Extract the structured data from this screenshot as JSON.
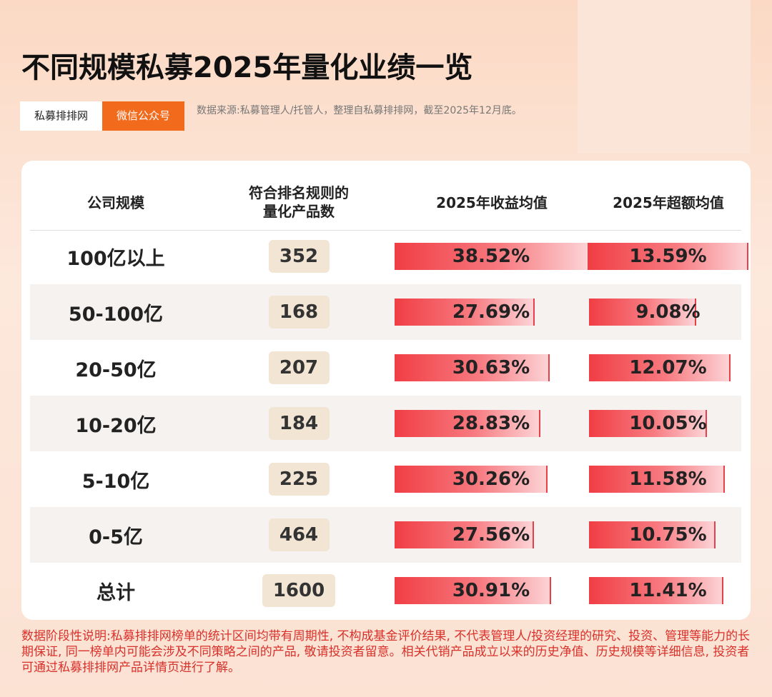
{
  "header": {
    "title": "不同规模私募2025年量化业绩一览",
    "tags": [
      "私募排排网",
      "微信公众号"
    ],
    "source": "数据来源:私募管理人/托管人，整理自私募排排网，截至2025年12月底。"
  },
  "table": {
    "columns": [
      "公司规模",
      "符合排名规则的量化产品数",
      "2025年收益均值",
      "2025年超额均值"
    ],
    "rows": [
      {
        "scale": "100亿以上",
        "count": 352,
        "return": 38.52,
        "return_label": "38.52%",
        "excess": 13.59,
        "excess_label": "13.59%"
      },
      {
        "scale": "50-100亿",
        "count": 168,
        "return": 27.69,
        "return_label": "27.69%",
        "excess": 9.08,
        "excess_label": "9.08%"
      },
      {
        "scale": "20-50亿",
        "count": 207,
        "return": 30.63,
        "return_label": "30.63%",
        "excess": 12.07,
        "excess_label": "12.07%"
      },
      {
        "scale": "10-20亿",
        "count": 184,
        "return": 28.83,
        "return_label": "28.83%",
        "excess": 10.05,
        "excess_label": "10.05%"
      },
      {
        "scale": "5-10亿",
        "count": 225,
        "return": 30.26,
        "return_label": "30.26%",
        "excess": 11.58,
        "excess_label": "11.58%"
      },
      {
        "scale": "0-5亿",
        "count": 464,
        "return": 27.56,
        "return_label": "27.56%",
        "excess": 10.75,
        "excess_label": "10.75%"
      },
      {
        "scale": "总计",
        "count": 1600,
        "return": 30.91,
        "return_label": "30.91%",
        "excess": 11.41,
        "excess_label": "11.41%"
      }
    ]
  },
  "footnote": "数据阶段性说明:私募排排网榜单的统计区间均带有周期性, 不构成基金评价结果, 不代表管理人/投资经理的研究、投资、管理等能力的长期保证, 同一榜单内可能会涉及不同策略之间的产品, 敬请投资者留意。相关代销产品成立以来的历史净值、历史规模等详细信息, 投资者可通过私募排排网产品详情页进行了解。"
}
